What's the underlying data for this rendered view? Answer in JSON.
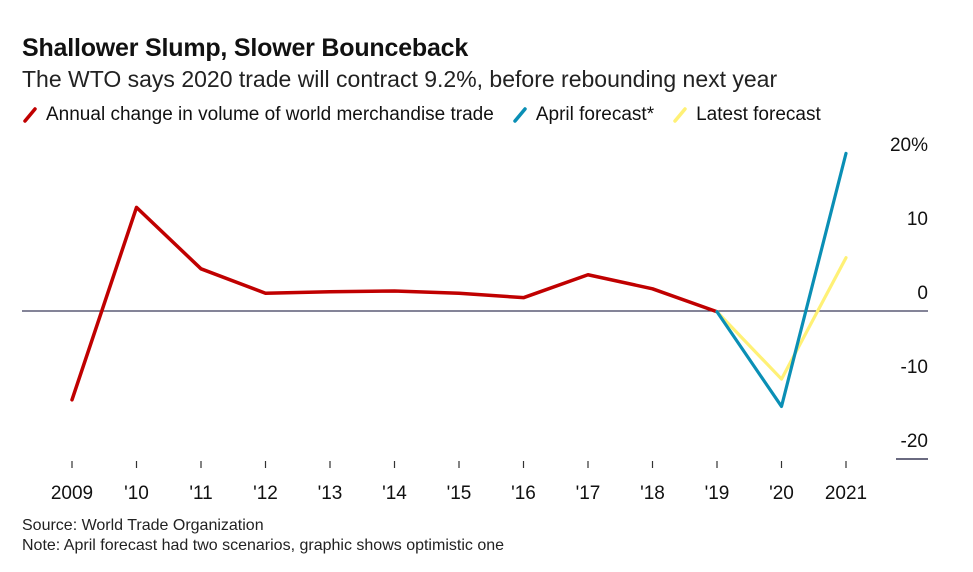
{
  "header": {
    "title": "Shallower Slump, Slower Bounceback",
    "subtitle": "The WTO says 2020 trade will contract 9.2%, before rebounding next year"
  },
  "footer": {
    "source": "Source: World Trade Organization",
    "note": "Note: April forecast had two scenarios, graphic shows optimistic one"
  },
  "chart_data": {
    "type": "line",
    "title": "Shallower Slump, Slower Bounceback",
    "subtitle": "The WTO says 2020 trade will contract 9.2%, before rebounding next year",
    "xlabel": "",
    "ylabel": "",
    "categories": [
      "2009",
      "'10",
      "'11",
      "'12",
      "'13",
      "'14",
      "'15",
      "'16",
      "'17",
      "'18",
      "'19",
      "'20",
      "2021"
    ],
    "y_ticks": [
      {
        "value": 20,
        "label": "20%"
      },
      {
        "value": 10,
        "label": "10"
      },
      {
        "value": 0,
        "label": "0"
      },
      {
        "value": -10,
        "label": "-10"
      },
      {
        "value": -20,
        "label": "-20"
      }
    ],
    "ylim": [
      -20,
      20
    ],
    "grid": false,
    "zero_line": true,
    "legend_position": "top-left",
    "series": [
      {
        "name": "Annual change in volume of world merchandise trade",
        "color": "#c00000",
        "values": [
          -12.0,
          14.0,
          5.7,
          2.4,
          2.6,
          2.7,
          2.4,
          1.8,
          4.9,
          3.0,
          -0.1,
          null,
          null
        ]
      },
      {
        "name": "April forecast*",
        "color": "#0a8fb5",
        "values": [
          null,
          null,
          null,
          null,
          null,
          null,
          null,
          null,
          null,
          null,
          -0.1,
          -12.9,
          21.3
        ]
      },
      {
        "name": "Latest forecast",
        "color": "#fff176",
        "values": [
          null,
          null,
          null,
          null,
          null,
          null,
          null,
          null,
          null,
          null,
          -0.1,
          -9.2,
          7.2
        ]
      }
    ]
  }
}
